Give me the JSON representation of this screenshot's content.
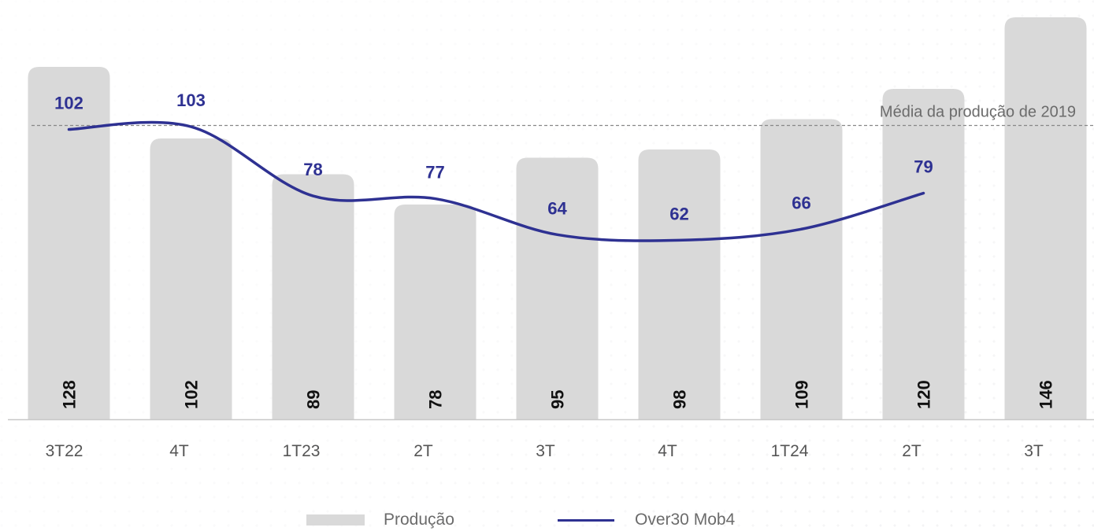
{
  "chart_data": {
    "type": "bar",
    "categories": [
      "3T22",
      "4T",
      "1T23",
      "2T",
      "3T",
      "4T",
      "1T24",
      "2T",
      "3T"
    ],
    "series": [
      {
        "name": "Produção",
        "type": "bar",
        "values": [
          128,
          102,
          89,
          78,
          95,
          98,
          109,
          120,
          146
        ],
        "color": "#d9d9d9"
      },
      {
        "name": "Over30 Mob4",
        "type": "line",
        "values": [
          102,
          103,
          78,
          77,
          64,
          62,
          66,
          79,
          null
        ],
        "color": "#2e3192"
      }
    ],
    "reference_line": {
      "label": "Média da produção de 2019",
      "value": 104,
      "style": "dashed"
    },
    "grid": false,
    "legend_position": "bottom-center"
  },
  "colors": {
    "bar": "#d9d9d9",
    "line": "#2e3192",
    "bar_label": "#111111",
    "axis_label": "#555555",
    "reference": "#888888"
  }
}
